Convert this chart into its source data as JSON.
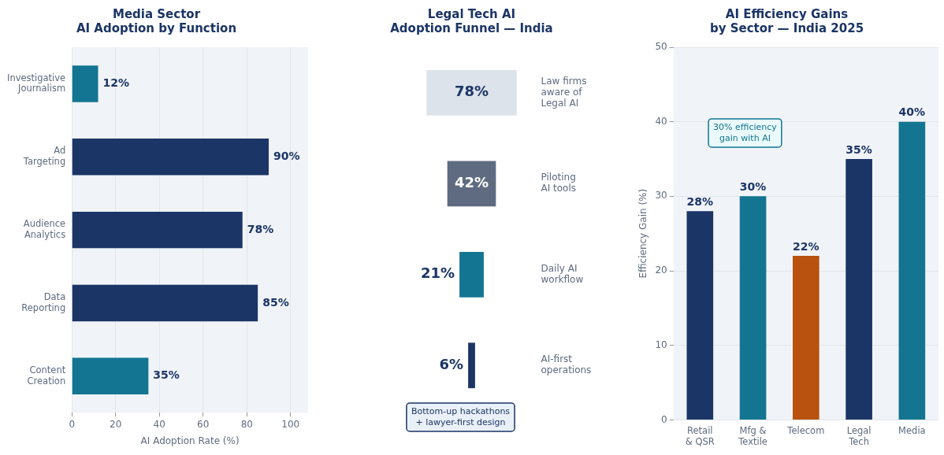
{
  "chart_data": [
    {
      "type": "bar",
      "orientation": "horizontal",
      "title": "Media Sector\nAI Adoption by Function",
      "xlabel": "AI Adoption Rate (%)",
      "categories": [
        "Investigative\nJournalism",
        "Ad\nTargeting",
        "Audience\nAnalytics",
        "Data\nReporting",
        "Content\nCreation"
      ],
      "values": [
        12,
        90,
        78,
        85,
        35
      ],
      "colors": [
        "#137591",
        "#1b3566",
        "#1b3566",
        "#1b3566",
        "#137591"
      ],
      "value_labels": [
        "12%",
        "90%",
        "78%",
        "85%",
        "35%"
      ],
      "xlim": [
        0,
        108
      ],
      "xticks": [
        0,
        20,
        40,
        60,
        80,
        100
      ],
      "grid": "x"
    },
    {
      "type": "other",
      "title": "Legal Tech AI\nAdoption Funnel — India",
      "categories": [
        "Law firms\naware of\nLegal AI",
        "Piloting\nAI tools",
        "Daily AI\nworkflow",
        "AI-first\noperations"
      ],
      "values": [
        78,
        42,
        21,
        6
      ],
      "colors": [
        "#dde3ea",
        "#5f6b80",
        "#137591",
        "#1b3566"
      ],
      "value_labels": [
        "78%",
        "42%",
        "21%",
        "6%"
      ],
      "annotations": [
        "Bottom-up hackathons\n+ lawyer-first design"
      ]
    },
    {
      "type": "bar",
      "title": "AI Efficiency Gains\nby Sector — India 2025",
      "ylabel": "Efficiency Gain (%)",
      "categories": [
        "Retail\n& QSR",
        "Mfg &\nTextile",
        "Telecom",
        "Legal\nTech",
        "Media"
      ],
      "values": [
        28,
        30,
        22,
        35,
        40
      ],
      "colors": [
        "#1b3566",
        "#137591",
        "#b8520e",
        "#1b3566",
        "#137591"
      ],
      "value_labels": [
        "28%",
        "30%",
        "22%",
        "35%",
        "40%"
      ],
      "ylim": [
        0,
        50
      ],
      "yticks": [
        0,
        10,
        20,
        30,
        40,
        50
      ],
      "grid": "y",
      "annotations": [
        "30% efficiency\ngain with AI"
      ]
    }
  ]
}
